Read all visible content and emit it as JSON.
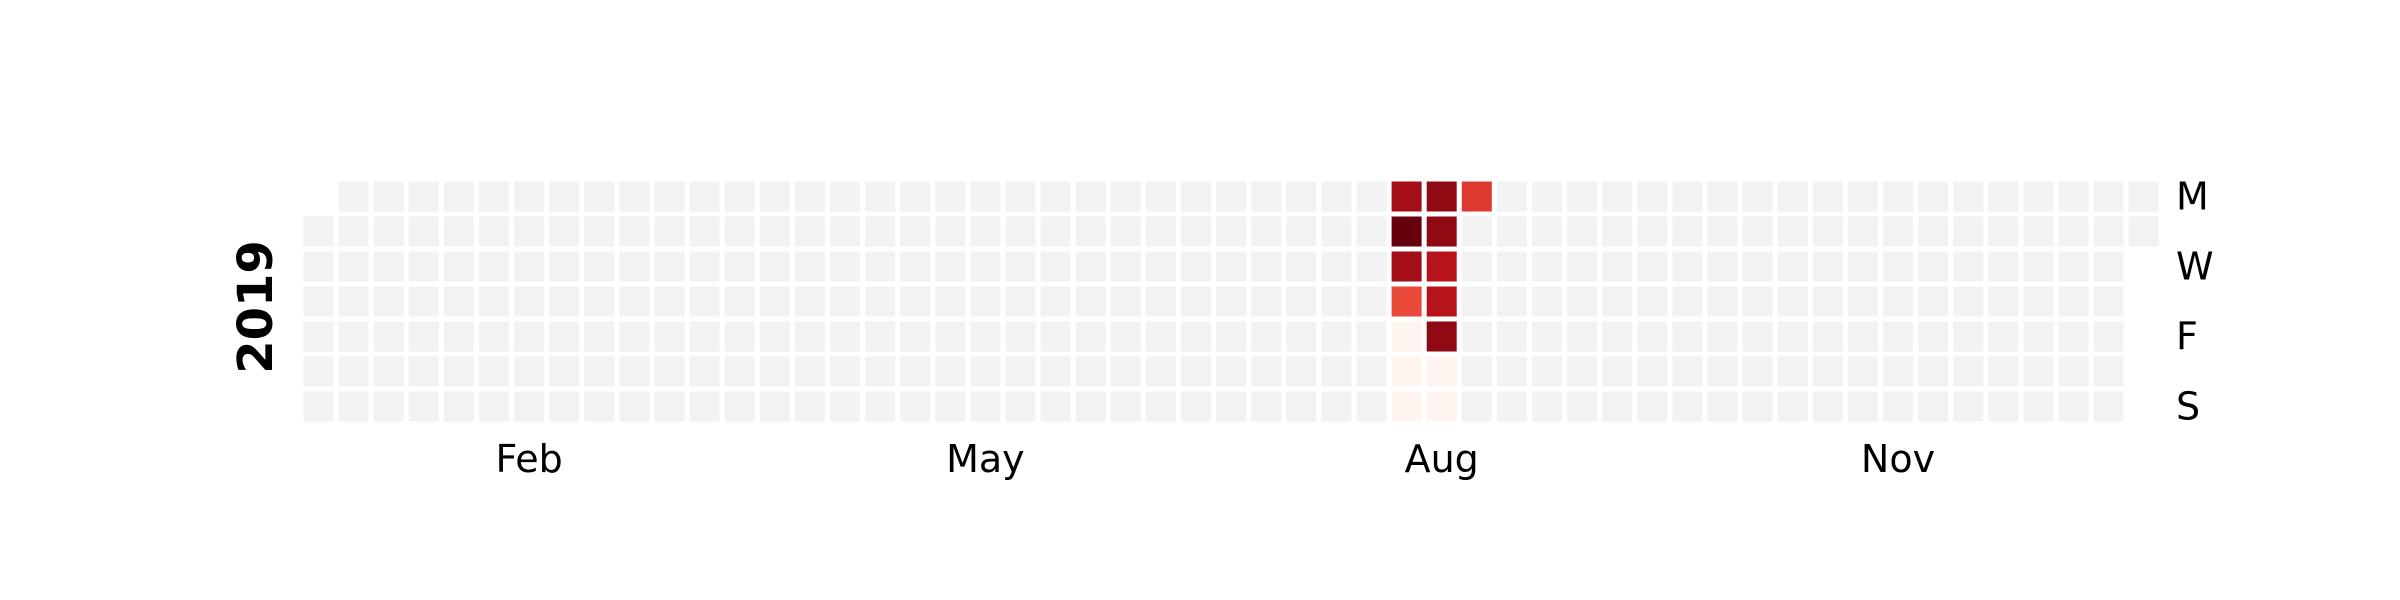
{
  "chart_data": {
    "type": "heatmap",
    "title": "",
    "year": "2019",
    "month_labels": [
      {
        "label": "Feb",
        "date": "2019-02-01"
      },
      {
        "label": "May",
        "date": "2019-05-01"
      },
      {
        "label": "Aug",
        "date": "2019-08-01"
      },
      {
        "label": "Nov",
        "date": "2019-11-01"
      }
    ],
    "day_labels": [
      {
        "label": "M",
        "weekday": 0
      },
      {
        "label": "W",
        "weekday": 2
      },
      {
        "label": "F",
        "weekday": 4
      },
      {
        "label": "S",
        "weekday": 6
      }
    ],
    "first_day": "2019-01-01",
    "last_day": "2019-12-31",
    "empty_color": "#f2f2f2",
    "colormap": [
      "#fff5f0",
      "#fcbba1",
      "#fb6a4a",
      "#cb181d",
      "#67000d"
    ],
    "vmin": 0,
    "vmax": 10,
    "values": [
      {
        "date": "2019-08-05",
        "value": 8.5
      },
      {
        "date": "2019-08-06",
        "value": 10
      },
      {
        "date": "2019-08-07",
        "value": 8.5
      },
      {
        "date": "2019-08-08",
        "value": 6
      },
      {
        "date": "2019-08-09",
        "value": 0
      },
      {
        "date": "2019-08-10",
        "value": 0
      },
      {
        "date": "2019-08-11",
        "value": 0
      },
      {
        "date": "2019-08-12",
        "value": 9
      },
      {
        "date": "2019-08-13",
        "value": 9
      },
      {
        "date": "2019-08-14",
        "value": 8
      },
      {
        "date": "2019-08-15",
        "value": 8
      },
      {
        "date": "2019-08-16",
        "value": 9
      },
      {
        "date": "2019-08-17",
        "value": 0
      },
      {
        "date": "2019-08-18",
        "value": 0
      },
      {
        "date": "2019-08-19",
        "value": 6.5
      }
    ]
  }
}
